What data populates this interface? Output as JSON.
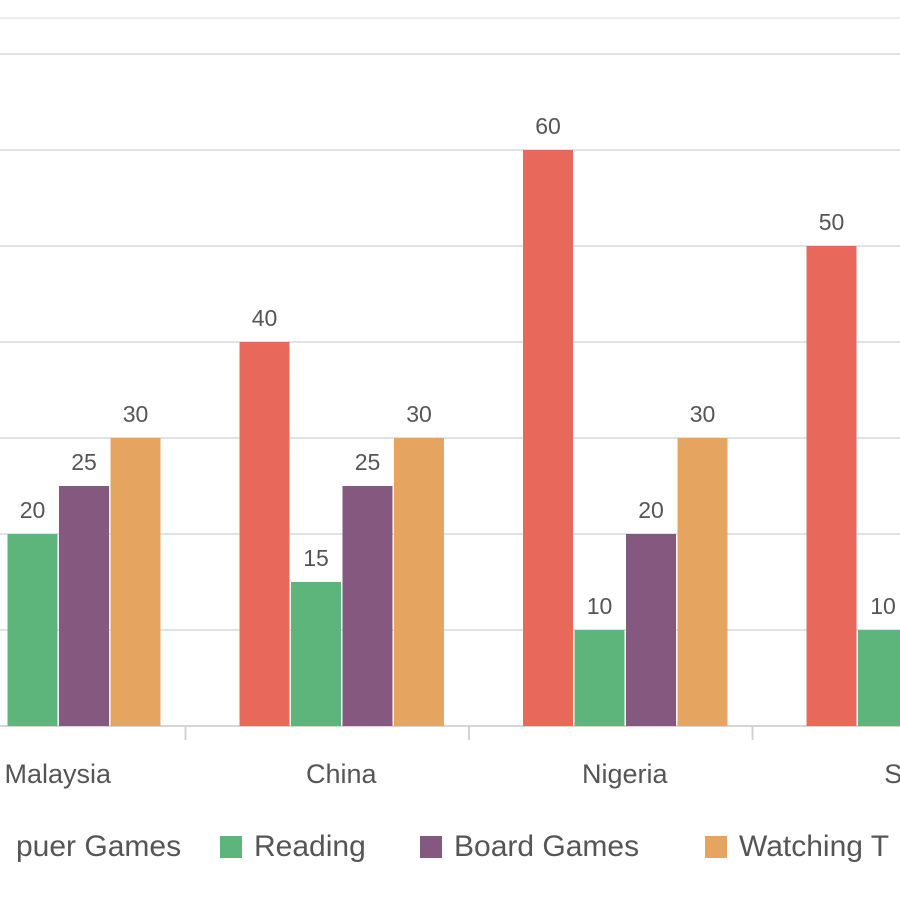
{
  "chart_data": {
    "type": "bar",
    "categories": [
      "Malaysia",
      "China",
      "Nigeria",
      "Sud"
    ],
    "series": [
      {
        "name": "puer Games",
        "color": "#E8695C",
        "values": [
          null,
          40,
          60,
          50
        ]
      },
      {
        "name": "Reading",
        "color": "#5EB57C",
        "values": [
          20,
          15,
          10,
          10
        ]
      },
      {
        "name": "Board Games",
        "color": "#85587F",
        "values": [
          25,
          25,
          20,
          null
        ]
      },
      {
        "name": "Watching T",
        "color": "#E5A460",
        "values": [
          30,
          30,
          30,
          null
        ]
      }
    ],
    "ylim": [
      0,
      70
    ],
    "grid": true,
    "legend_position": "bottom",
    "gridline_color": "#D9D9D9",
    "label_color": "#555555",
    "axis_color": "#D0D0D0"
  }
}
